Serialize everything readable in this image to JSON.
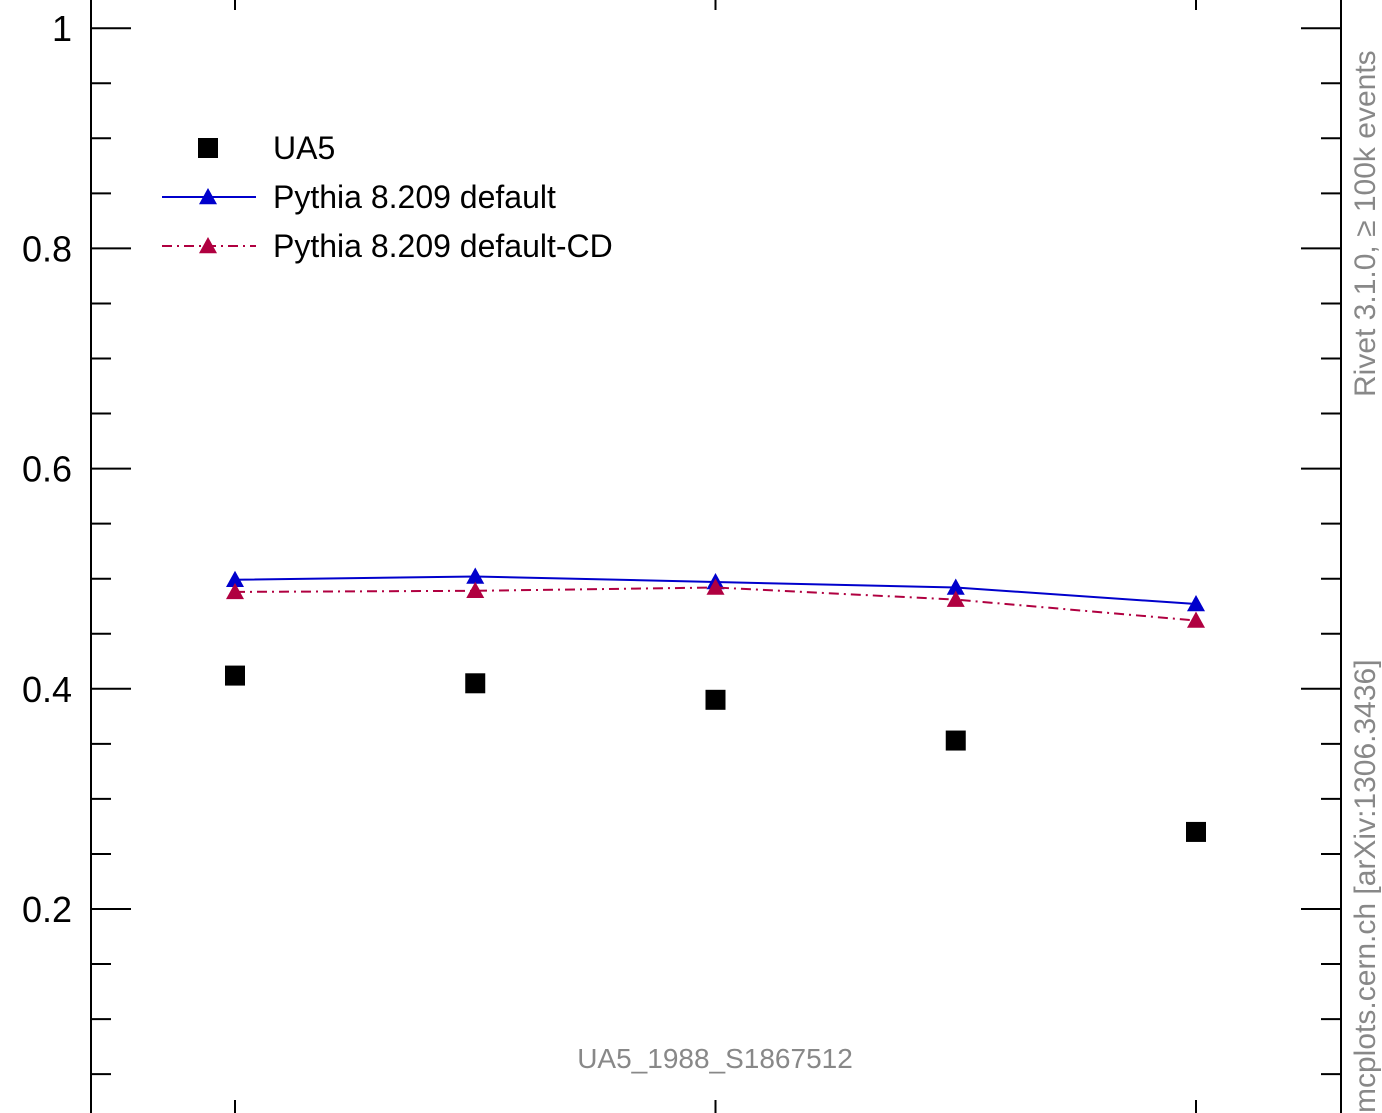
{
  "chart_data": {
    "type": "scatter",
    "title": "",
    "xlabel": "",
    "ylabel": "",
    "ylim": [
      0,
      1.05
    ],
    "grid": false,
    "legend_position": "top-left",
    "x": [
      1,
      2,
      3,
      4,
      5
    ],
    "y_ticks_major": [
      0.2,
      0.4,
      0.6,
      0.8,
      1
    ],
    "y_tick_labels": [
      "0.2",
      "0.4",
      "0.6",
      "0.8",
      "1"
    ],
    "series": [
      {
        "name": "UA5",
        "style": "markers",
        "marker": "square",
        "color": "#000000",
        "values": [
          0.412,
          0.405,
          0.39,
          0.353,
          0.27
        ]
      },
      {
        "name": "Pythia 8.209 default",
        "style": "solid-line",
        "marker": "triangle",
        "color": "#0000cc",
        "values": [
          0.499,
          0.502,
          0.497,
          0.492,
          0.477
        ]
      },
      {
        "name": "Pythia 8.209 default-CD",
        "style": "dash-dot-line",
        "marker": "triangle",
        "color": "#b00040",
        "values": [
          0.488,
          0.489,
          0.492,
          0.481,
          0.462
        ]
      }
    ],
    "annotation": "UA5_1988_S1867512"
  },
  "side_labels": {
    "rivet": "Rivet 3.1.0, ≥ 100k events",
    "mcplots": "mcplots.cern.ch [arXiv:1306.3436]"
  }
}
